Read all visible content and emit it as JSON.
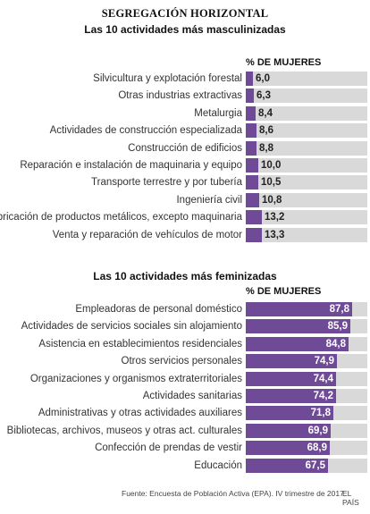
{
  "title": "SEGREGACIÓN HORIZONTAL",
  "chart_data": [
    {
      "type": "bar",
      "orientation": "horizontal",
      "title": "Las 10 actividades más masculinizadas",
      "value_header": "% DE MUJERES",
      "xlim": [
        0,
        100
      ],
      "categories": [
        "Silvicultura y explotación forestal",
        "Otras industrias extractivas",
        "Metalurgia",
        "Actividades de construcción especializada",
        "Construcción de edificios",
        "Reparación e instalación de maquinaria y equipo",
        "Transporte terrestre y por tubería",
        "Ingeniería civil",
        "Fabricación de productos metálicos, excepto maquinaria",
        "Venta y reparación de vehículos de motor"
      ],
      "values": [
        6.0,
        6.3,
        8.4,
        8.6,
        8.8,
        10.0,
        10.5,
        10.8,
        13.2,
        13.3
      ],
      "labels": [
        "6,0",
        "6,3",
        "8,4",
        "8,6",
        "8,8",
        "10,0",
        "10,5",
        "10,8",
        "13,2",
        "13,3"
      ],
      "bar_color": "#6f4a96",
      "track_color": "#d9d9d9"
    },
    {
      "type": "bar",
      "orientation": "horizontal",
      "title": "Las 10 actividades más feminizadas",
      "value_header": "% DE MUJERES",
      "xlim": [
        0,
        100
      ],
      "categories": [
        "Empleadoras de personal doméstico",
        "Actividades de servicios sociales sin alojamiento",
        "Asistencia en establecimientos residenciales",
        "Otros servicios personales",
        "Organizaciones y organismos extraterritoriales",
        "Actividades sanitarias",
        "Administrativas y otras actividades auxiliares",
        "Bibliotecas, archivos, museos y otras act. culturales",
        "Confección de prendas de vestir",
        "Educación"
      ],
      "values": [
        87.8,
        85.9,
        84.8,
        74.9,
        74.4,
        74.2,
        71.8,
        69.9,
        68.9,
        67.5
      ],
      "labels": [
        "87,8",
        "85,9",
        "84,8",
        "74,9",
        "74,4",
        "74,2",
        "71,8",
        "69,9",
        "68,9",
        "67,5"
      ],
      "bar_color": "#6f4a96",
      "track_color": "#d9d9d9"
    }
  ],
  "footer": {
    "source": "Fuente: Encuesta de Población Activa (EPA). IV trimestre de 2017.",
    "brand": "EL PAÍS"
  }
}
